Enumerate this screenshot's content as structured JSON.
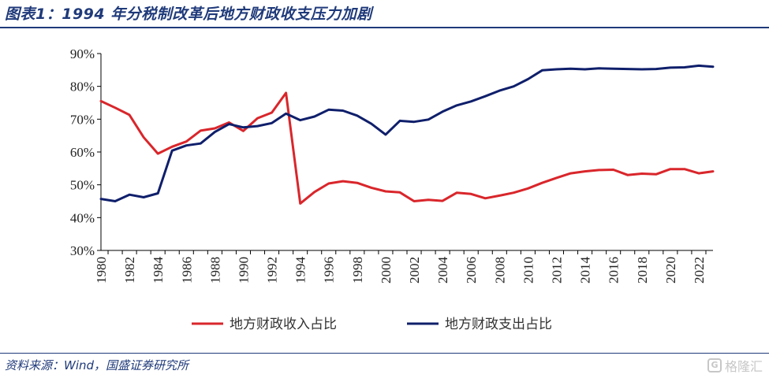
{
  "header": {
    "title": "图表1：1994 年分税制改革后地方财政收支压力加剧"
  },
  "footer": {
    "source": "资料来源：Wind，国盛证券研究所",
    "watermark": "格隆汇"
  },
  "colors": {
    "revenue": "#d9262b",
    "expenditure": "#0f1f6b",
    "accent": "#1f3a7a"
  },
  "chart_data": {
    "type": "line",
    "title": "",
    "xlabel": "",
    "ylabel": "",
    "ylim": [
      0.3,
      0.9
    ],
    "yticks": [
      "30%",
      "40%",
      "50%",
      "60%",
      "70%",
      "80%",
      "90%"
    ],
    "xlim": [
      1980,
      2023
    ],
    "xticks": [
      "1980",
      "1982",
      "1984",
      "1986",
      "1988",
      "1990",
      "1992",
      "1994",
      "1996",
      "1998",
      "2000",
      "2002",
      "2004",
      "2006",
      "2008",
      "2010",
      "2012",
      "2014",
      "2016",
      "2018",
      "2020",
      "2022"
    ],
    "legend_position": "bottom",
    "grid": false,
    "x": [
      1980,
      1981,
      1982,
      1983,
      1984,
      1985,
      1986,
      1987,
      1988,
      1989,
      1990,
      1991,
      1992,
      1993,
      1994,
      1995,
      1996,
      1997,
      1998,
      1999,
      2000,
      2001,
      2002,
      2003,
      2004,
      2005,
      2006,
      2007,
      2008,
      2009,
      2010,
      2011,
      2012,
      2013,
      2014,
      2015,
      2016,
      2017,
      2018,
      2019,
      2020,
      2021,
      2022,
      2023
    ],
    "series": [
      {
        "name": "地方财政收入占比",
        "values": [
          0.755,
          0.735,
          0.713,
          0.645,
          0.595,
          0.616,
          0.632,
          0.665,
          0.672,
          0.69,
          0.664,
          0.703,
          0.72,
          0.78,
          0.443,
          0.478,
          0.504,
          0.511,
          0.506,
          0.491,
          0.48,
          0.477,
          0.45,
          0.454,
          0.451,
          0.476,
          0.472,
          0.459,
          0.467,
          0.476,
          0.489,
          0.506,
          0.521,
          0.535,
          0.541,
          0.545,
          0.546,
          0.53,
          0.534,
          0.532,
          0.548,
          0.548,
          0.535,
          0.541
        ]
      },
      {
        "name": "地方财政支出占比",
        "values": [
          0.457,
          0.45,
          0.47,
          0.462,
          0.474,
          0.604,
          0.62,
          0.626,
          0.661,
          0.685,
          0.675,
          0.679,
          0.688,
          0.717,
          0.697,
          0.708,
          0.729,
          0.726,
          0.711,
          0.686,
          0.653,
          0.695,
          0.692,
          0.699,
          0.723,
          0.742,
          0.754,
          0.77,
          0.787,
          0.8,
          0.822,
          0.849,
          0.852,
          0.854,
          0.852,
          0.855,
          0.854,
          0.853,
          0.852,
          0.853,
          0.857,
          0.858,
          0.863,
          0.86
        ]
      }
    ]
  }
}
